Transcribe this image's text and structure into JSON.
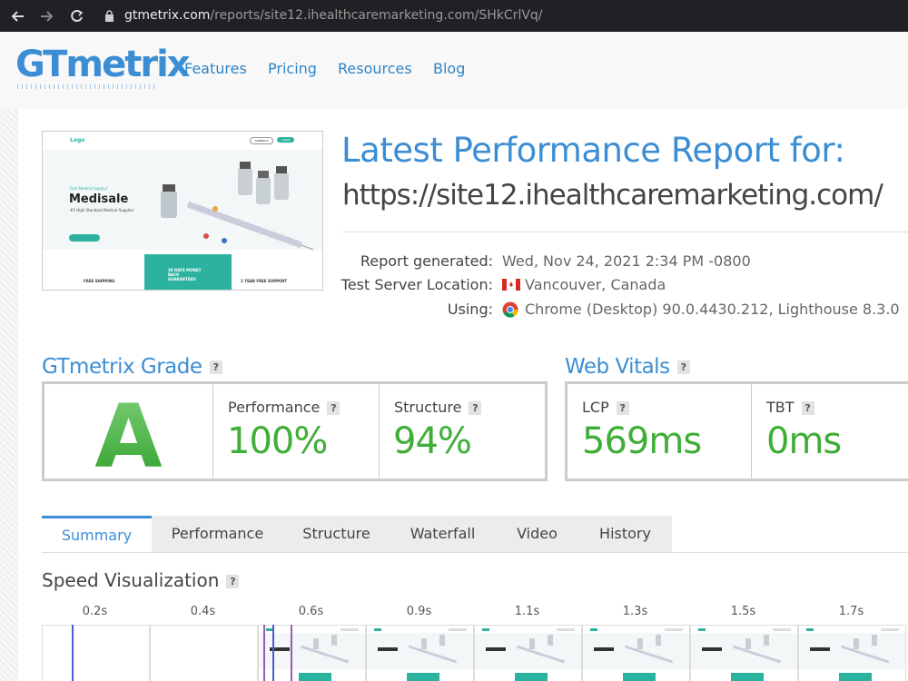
{
  "browser": {
    "url_host": "gtmetrix.com",
    "url_path": "/reports/site12.ihealthcaremarketing.com/SHkCrlVq/"
  },
  "nav": {
    "logo": "GTmetrix",
    "links": [
      "Features",
      "Pricing",
      "Resources",
      "Blog"
    ]
  },
  "thumbnail": {
    "logo": "Logo",
    "buttons": [
      "CONTACT",
      "LOGIN"
    ],
    "kicker": "Find Medical Supply?",
    "brand": "Medisale",
    "tagline": "#1 High Standard Medical Supplier",
    "features": [
      "FREE SHIPPING",
      "30 DAYS MONEY BACK GUARANTEED",
      "1 YEAR FREE SUPPORT"
    ]
  },
  "report": {
    "heading": "Latest Performance Report for:",
    "url": "https://site12.ihealthcaremarketing.com/",
    "details": [
      {
        "label": "Report generated:",
        "value": "Wed, Nov 24, 2021 2:34 PM -0800"
      },
      {
        "label": "Test Server Location:",
        "value": "Vancouver, Canada"
      },
      {
        "label": "Using:",
        "value": "Chrome (Desktop) 90.0.4430.212, Lighthouse 8.3.0"
      }
    ]
  },
  "help": "?",
  "grade": {
    "title": "GTmetrix Grade",
    "grade": "A",
    "metrics": [
      {
        "label": "Performance",
        "value": "100%"
      },
      {
        "label": "Structure",
        "value": "94%"
      }
    ]
  },
  "vitals": {
    "title": "Web Vitals",
    "metrics": [
      {
        "label": "LCP",
        "value": "569ms"
      },
      {
        "label": "TBT",
        "value": "0ms"
      }
    ]
  },
  "tabs": {
    "items": [
      "Summary",
      "Performance",
      "Structure",
      "Waterfall",
      "Video",
      "History"
    ],
    "active": 0
  },
  "speed": {
    "title": "Speed Visualization",
    "times": [
      "0.2s",
      "0.4s",
      "0.6s",
      "0.9s",
      "1.1s",
      "1.3s",
      "1.5s",
      "1.7s"
    ]
  }
}
